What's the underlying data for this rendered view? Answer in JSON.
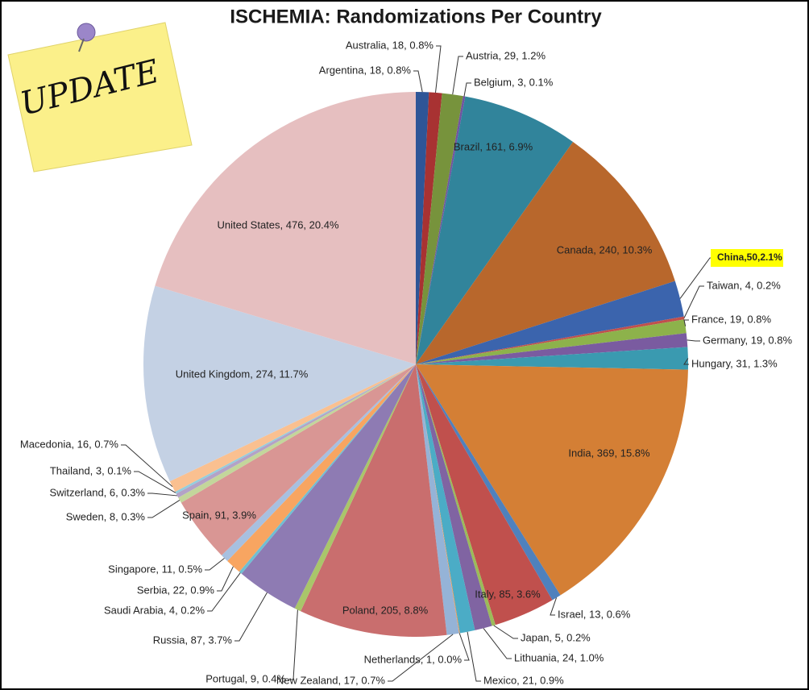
{
  "note": "UPDATE",
  "chart_data": {
    "type": "pie",
    "title": "ISCHEMIA: Randomizations Per Country",
    "values": [
      18,
      18,
      29,
      3,
      161,
      240,
      50,
      4,
      19,
      19,
      31,
      369,
      13,
      85,
      5,
      24,
      21,
      1,
      17,
      205,
      9,
      87,
      4,
      22,
      11,
      91,
      8,
      6,
      3,
      16,
      274,
      476
    ],
    "value_labels": [
      "Argentina, 18, 0.8%",
      "Australia, 18, 0.8%",
      "Austria, 29, 1.2%",
      "Belgium, 3, 0.1%",
      "Brazil, 161, 6.9%",
      "Canada, 240, 10.3%",
      "China,50,2.1%",
      "Taiwan, 4, 0.2%",
      "France, 19, 0.8%",
      "Germany, 19, 0.8%",
      "Hungary, 31, 1.3%",
      "India, 369, 15.8%",
      "Israel, 13, 0.6%",
      "Italy, 85, 3.6%",
      "Japan, 5, 0.2%",
      "Lithuania, 24, 1.0%",
      "Mexico, 21, 0.9%",
      "Netherlands, 1, 0.0%",
      "New Zealand, 17, 0.7%",
      "Poland, 205, 8.8%",
      "Portugal, 9, 0.4%",
      "Russia, 87, 3.7%",
      "Saudi Arabia, 4, 0.2%",
      "Serbia, 22, 0.9%",
      "Singapore, 11, 0.5%",
      "Spain, 91, 3.9%",
      "Sweden, 8, 0.3%",
      "Switzerland, 6, 0.3%",
      "Thailand, 3, 0.1%",
      "Macedonia, 16, 0.7%",
      "United Kingdom, 274, 11.7%",
      "United States, 476, 20.4%"
    ],
    "colors": [
      "#2e5597",
      "#a83232",
      "#77933c",
      "#7153a0",
      "#31849b",
      "#b8672c",
      "#3b64ad",
      "#c0504d",
      "#8db24b",
      "#7a5ba0",
      "#3a9ab0",
      "#d47f35",
      "#4f81bd",
      "#c0504d",
      "#9bbb59",
      "#8064a2",
      "#4bacc6",
      "#f79646",
      "#95b3d7",
      "#c96e6e",
      "#a9c66a",
      "#8e7bb3",
      "#6fbfd3",
      "#f8a561",
      "#a7c0e0",
      "#d99694",
      "#c3d69b",
      "#b3a2c7",
      "#93cddd",
      "#fac090",
      "#c4d1e4",
      "#e6bfc0"
    ]
  }
}
